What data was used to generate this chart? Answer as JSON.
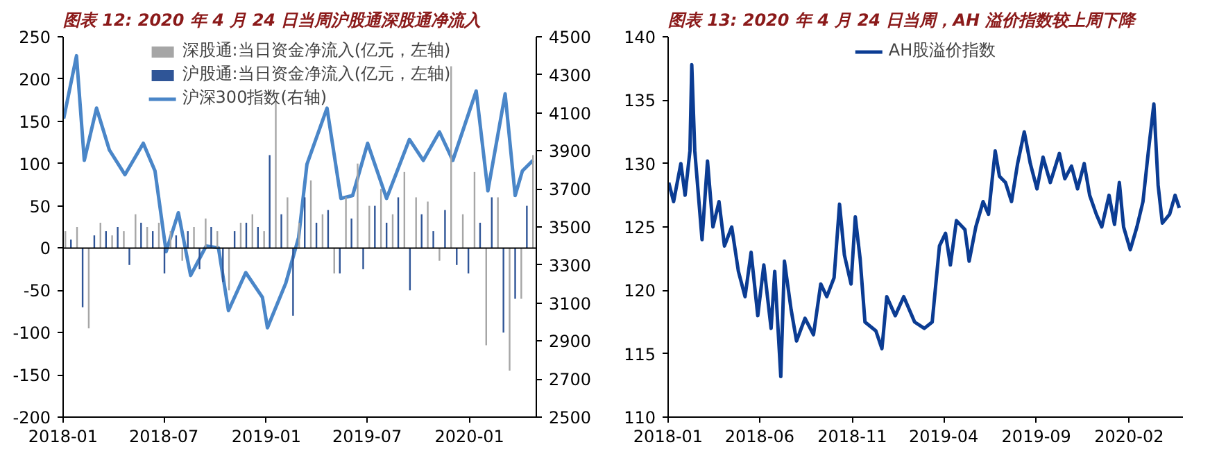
{
  "chart_data": [
    {
      "type": "bar",
      "title": "图表 12: 2020 年 4 月 24 日当周沪股通深股通净流入",
      "legend": "top",
      "grid": false,
      "xlim": [
        "2018-01-01",
        "2020-04-30"
      ],
      "xticks": [
        "2018-01",
        "2018-07",
        "2019-01",
        "2019-07",
        "2020-01"
      ],
      "ylim": [
        -200,
        250
      ],
      "yticks": [
        -200,
        -150,
        -100,
        -50,
        0,
        50,
        100,
        150,
        200,
        250
      ],
      "y2lim": [
        2500,
        4500
      ],
      "y2ticks": [
        2500,
        2700,
        2900,
        3100,
        3300,
        3500,
        3700,
        3900,
        4100,
        4300,
        4500
      ],
      "ref_lines": [
        {
          "axis": "y",
          "value": 0,
          "color": "#000000"
        }
      ],
      "series": [
        {
          "name": "深股通:当日资金净流入(亿元，左轴)",
          "color": "#a6a6a6",
          "x": [
            "2018-01-05",
            "2018-01-26",
            "2018-02-16",
            "2018-03-09",
            "2018-03-30",
            "2018-04-20",
            "2018-05-11",
            "2018-06-01",
            "2018-06-22",
            "2018-07-13",
            "2018-08-03",
            "2018-08-24",
            "2018-09-14",
            "2018-10-05",
            "2018-10-26",
            "2018-11-16",
            "2018-12-07",
            "2018-12-28",
            "2019-01-18",
            "2019-02-08",
            "2019-03-01",
            "2019-03-22",
            "2019-04-12",
            "2019-05-03",
            "2019-05-24",
            "2019-06-14",
            "2019-07-05",
            "2019-07-26",
            "2019-08-16",
            "2019-09-06",
            "2019-09-27",
            "2019-10-18",
            "2019-11-08",
            "2019-11-29",
            "2019-12-20",
            "2020-01-10",
            "2020-01-31",
            "2020-02-21",
            "2020-03-13",
            "2020-04-03",
            "2020-04-24"
          ],
          "values": [
            20,
            25,
            -95,
            30,
            15,
            20,
            40,
            25,
            30,
            20,
            -15,
            25,
            35,
            20,
            -50,
            30,
            40,
            20,
            175,
            60,
            30,
            80,
            40,
            -30,
            60,
            100,
            50,
            70,
            40,
            90,
            60,
            55,
            -15,
            215,
            40,
            90,
            -115,
            60,
            -145,
            -60,
            110
          ]
        },
        {
          "name": "沪股通:当日资金净流入(亿元，左轴)",
          "color": "#2f5597",
          "x": [
            "2018-01-15",
            "2018-02-05",
            "2018-02-26",
            "2018-03-19",
            "2018-04-09",
            "2018-04-30",
            "2018-05-21",
            "2018-06-11",
            "2018-07-02",
            "2018-07-23",
            "2018-08-13",
            "2018-09-03",
            "2018-09-24",
            "2018-10-15",
            "2018-11-05",
            "2018-11-26",
            "2018-12-17",
            "2019-01-07",
            "2019-01-28",
            "2019-02-18",
            "2019-03-11",
            "2019-04-01",
            "2019-04-22",
            "2019-05-13",
            "2019-06-03",
            "2019-06-24",
            "2019-07-15",
            "2019-08-05",
            "2019-08-26",
            "2019-09-16",
            "2019-10-07",
            "2019-10-28",
            "2019-11-18",
            "2019-12-09",
            "2019-12-30",
            "2020-01-20",
            "2020-02-10",
            "2020-03-02",
            "2020-03-23",
            "2020-04-13"
          ],
          "values": [
            10,
            -70,
            15,
            20,
            25,
            -20,
            30,
            20,
            -30,
            15,
            20,
            -25,
            25,
            -40,
            20,
            30,
            25,
            110,
            40,
            -80,
            60,
            30,
            45,
            -30,
            35,
            -25,
            50,
            30,
            60,
            -50,
            40,
            20,
            45,
            -20,
            -30,
            30,
            60,
            -100,
            -60,
            50
          ]
        },
        {
          "name": "沪深300指数(右轴)",
          "type": "line",
          "axis": "y2",
          "color": "#4a86c8",
          "x": [
            "2018-01-02",
            "2018-01-25",
            "2018-02-08",
            "2018-03-02",
            "2018-03-25",
            "2018-04-22",
            "2018-05-25",
            "2018-06-15",
            "2018-07-05",
            "2018-07-27",
            "2018-08-18",
            "2018-09-15",
            "2018-10-07",
            "2018-10-25",
            "2018-11-25",
            "2018-12-25",
            "2019-01-03",
            "2019-02-05",
            "2019-02-28",
            "2019-03-15",
            "2019-04-20",
            "2019-05-15",
            "2019-06-05",
            "2019-07-02",
            "2019-08-05",
            "2019-09-15",
            "2019-10-10",
            "2019-11-08",
            "2019-12-02",
            "2020-01-13",
            "2020-02-03",
            "2020-03-05",
            "2020-03-23",
            "2020-04-05",
            "2020-04-24"
          ],
          "values": [
            4070,
            4400,
            3850,
            4125,
            3905,
            3775,
            3940,
            3795,
            3370,
            3575,
            3245,
            3400,
            3390,
            3060,
            3260,
            3130,
            2970,
            3205,
            3445,
            3830,
            4125,
            3650,
            3665,
            3940,
            3650,
            3960,
            3850,
            4000,
            3850,
            4215,
            3690,
            4200,
            3665,
            3795,
            3850
          ]
        }
      ]
    },
    {
      "type": "line",
      "title": "图表 13: 2020 年 4 月 24 日当周，AH 溢价指数较上周下降",
      "legend": "top",
      "grid": false,
      "xlim": [
        "2018-01-01",
        "2020-04-30"
      ],
      "xticks": [
        "2018-01",
        "2018-06",
        "2018-11",
        "2019-04",
        "2019-09",
        "2020-02"
      ],
      "ylim": [
        110,
        140
      ],
      "yticks": [
        110,
        115,
        120,
        125,
        130,
        135,
        140
      ],
      "series": [
        {
          "name": "AH股溢价指数",
          "color": "#0b3c93",
          "x": [
            "2018-01-02",
            "2018-01-10",
            "2018-01-22",
            "2018-01-29",
            "2018-02-06",
            "2018-02-09",
            "2018-02-14",
            "2018-02-26",
            "2018-03-07",
            "2018-03-16",
            "2018-03-26",
            "2018-04-04",
            "2018-04-16",
            "2018-04-27",
            "2018-05-08",
            "2018-05-18",
            "2018-05-29",
            "2018-06-08",
            "2018-06-20",
            "2018-06-26",
            "2018-07-06",
            "2018-07-12",
            "2018-07-23",
            "2018-08-01",
            "2018-08-15",
            "2018-08-29",
            "2018-09-10",
            "2018-09-20",
            "2018-10-02",
            "2018-10-11",
            "2018-10-19",
            "2018-10-30",
            "2018-11-06",
            "2018-11-14",
            "2018-11-22",
            "2018-12-10",
            "2018-12-20",
            "2018-12-28",
            "2019-01-11",
            "2019-01-25",
            "2019-02-12",
            "2019-02-28",
            "2019-03-13",
            "2019-03-25",
            "2019-04-04",
            "2019-04-12",
            "2019-04-22",
            "2019-05-06",
            "2019-05-13",
            "2019-05-24",
            "2019-06-05",
            "2019-06-14",
            "2019-06-25",
            "2019-07-02",
            "2019-07-12",
            "2019-07-22",
            "2019-08-01",
            "2019-08-12",
            "2019-08-22",
            "2019-09-02",
            "2019-09-12",
            "2019-09-24",
            "2019-10-09",
            "2019-10-18",
            "2019-10-29",
            "2019-11-08",
            "2019-11-19",
            "2019-11-28",
            "2019-12-09",
            "2019-12-18",
            "2019-12-30",
            "2020-01-08",
            "2020-01-16",
            "2020-01-23",
            "2020-02-03",
            "2020-02-14",
            "2020-02-24",
            "2020-03-04",
            "2020-03-13",
            "2020-03-20",
            "2020-03-27",
            "2020-04-08",
            "2020-04-17",
            "2020-04-24"
          ],
          "values": [
            128.5,
            127,
            130,
            127.5,
            131,
            137.8,
            131,
            124,
            130.2,
            125,
            127,
            123.5,
            125,
            121.5,
            119.5,
            123,
            118,
            122,
            117,
            121.5,
            113.2,
            122.3,
            118.5,
            116,
            117.8,
            116.5,
            120.5,
            119.5,
            121,
            126.8,
            122.8,
            120.5,
            125.8,
            122.5,
            117.5,
            116.8,
            115.4,
            119.5,
            118,
            119.5,
            117.5,
            117,
            117.5,
            123.5,
            124.5,
            122,
            125.5,
            124.8,
            122.3,
            125,
            127,
            126,
            131,
            129,
            128.5,
            127,
            130,
            132.5,
            130,
            128,
            130.5,
            128.5,
            130.8,
            128.8,
            129.8,
            128,
            130,
            127.5,
            126,
            125,
            127.5,
            125.2,
            128.5,
            125,
            123.2,
            125,
            127,
            131,
            134.7,
            128.3,
            125.3,
            126,
            127.5,
            126.5
          ]
        }
      ]
    }
  ]
}
